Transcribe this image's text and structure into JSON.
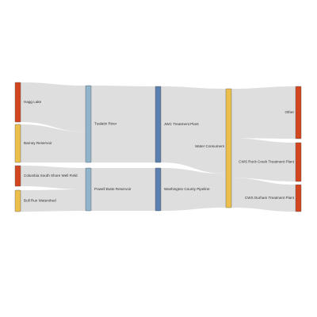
{
  "diagram": {
    "type": "sankey",
    "colors": {
      "red": "#d2461f",
      "yellow": "#ecbf4c",
      "lightblue": "#8fb4cc",
      "blue": "#5b7fae",
      "link": "#dcdcdc"
    },
    "nodes": [
      {
        "id": "hagg",
        "label": "Hagg Lake",
        "color": "red"
      },
      {
        "id": "barney",
        "label": "Barney Reservoir",
        "color": "yellow"
      },
      {
        "id": "columbia",
        "label": "Columbia South Shore Well Field",
        "color": "red"
      },
      {
        "id": "bullrun",
        "label": "Bull Run Watershed",
        "color": "yellow"
      },
      {
        "id": "tualatin",
        "label": "Tualatin River",
        "color": "lightblue"
      },
      {
        "id": "powell",
        "label": "Powell Butte Reservoir",
        "color": "lightblue"
      },
      {
        "id": "jwc",
        "label": "JWC Treatment Plant",
        "color": "blue"
      },
      {
        "id": "wcp",
        "label": "Washington County Pipeline",
        "color": "blue"
      },
      {
        "id": "consumers",
        "label": "Water Consumers",
        "color": "yellow"
      },
      {
        "id": "other",
        "label": "Other",
        "color": "red"
      },
      {
        "id": "rockcreek",
        "label": "CWS Rock Creek Treatment Plant",
        "color": "red"
      },
      {
        "id": "durham",
        "label": "CWS Durham Treatment Plant",
        "color": "red"
      }
    ],
    "links": [
      {
        "source": "hagg",
        "target": "tualatin",
        "value": 30
      },
      {
        "source": "barney",
        "target": "tualatin",
        "value": 20
      },
      {
        "source": "columbia",
        "target": "powell",
        "value": 10
      },
      {
        "source": "bullrun",
        "target": "powell",
        "value": 10
      },
      {
        "source": "tualatin",
        "target": "jwc",
        "value": 50
      },
      {
        "source": "powell",
        "target": "wcp",
        "value": 20
      },
      {
        "source": "jwc",
        "target": "consumers",
        "value": 50
      },
      {
        "source": "wcp",
        "target": "consumers",
        "value": 20
      },
      {
        "source": "consumers",
        "target": "other",
        "value": 25
      },
      {
        "source": "consumers",
        "target": "rockcreek",
        "value": 20
      },
      {
        "source": "consumers",
        "target": "durham",
        "value": 15
      }
    ]
  }
}
